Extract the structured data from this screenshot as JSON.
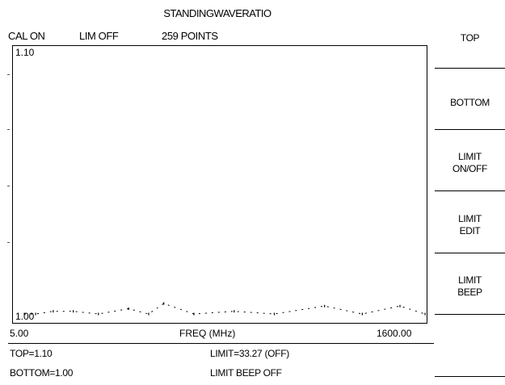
{
  "screen": {
    "title": "STANDINGWAVERATIO",
    "status": {
      "cal": "CAL ON",
      "limit": "LIM OFF",
      "points": "259 POINTS"
    }
  },
  "plot": {
    "top_label": "1.10",
    "bottom_label": "1.00",
    "x_start": "5.00",
    "x_label": "FREQ (MHz)",
    "x_end": "1600.00"
  },
  "chart_data": {
    "type": "line",
    "xlabel": "FREQ (MHz)",
    "ylabel": "",
    "xlim": [
      5.0,
      1600.0
    ],
    "ylim": [
      1.0,
      1.1
    ],
    "x": [
      5,
      50,
      120,
      200,
      300,
      420,
      500,
      560,
      680,
      840,
      1000,
      1200,
      1350,
      1500,
      1600
    ],
    "series": [
      {
        "values": [
          1.0,
          1.0,
          1.001,
          1.001,
          1.0,
          1.002,
          1.0,
          1.004,
          1.0,
          1.001,
          1.0,
          1.003,
          1.0,
          1.003,
          1.0
        ]
      }
    ]
  },
  "readouts": {
    "top": "TOP=1.10",
    "bottom": "BOTTOM=1.00",
    "limit": "LIMIT=33.27 (OFF)",
    "beep": "LIMIT BEEP OFF"
  },
  "softkeys": [
    {
      "label": "TOP"
    },
    {
      "label": "BOTTOM"
    },
    {
      "label": "LIMIT\nON/OFF"
    },
    {
      "label": "LIMIT\nEDIT"
    },
    {
      "label": "LIMIT\nBEEP"
    }
  ]
}
